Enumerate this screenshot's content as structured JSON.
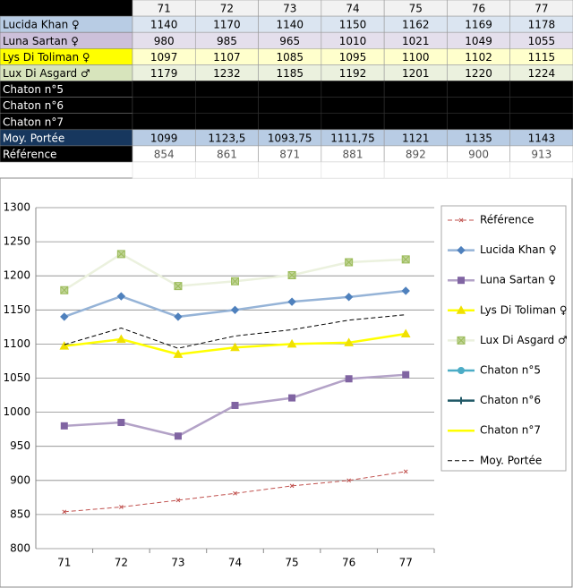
{
  "table": {
    "header": [
      "71",
      "72",
      "73",
      "74",
      "75",
      "76",
      "77"
    ],
    "rows": [
      {
        "name": "Lucida Khan ♀",
        "cells": [
          "1140",
          "1170",
          "1140",
          "1150",
          "1162",
          "1169",
          "1178"
        ]
      },
      {
        "name": "Luna Sartan ♀",
        "cells": [
          "980",
          "985",
          "965",
          "1010",
          "1021",
          "1049",
          "1055"
        ]
      },
      {
        "name": "Lys Di Toliman ♀",
        "cells": [
          "1097",
          "1107",
          "1085",
          "1095",
          "1100",
          "1102",
          "1115"
        ]
      },
      {
        "name": "Lux Di Asgard ♂",
        "cells": [
          "1179",
          "1232",
          "1185",
          "1192",
          "1201",
          "1220",
          "1224"
        ]
      },
      {
        "name": "Chaton n°5",
        "cells": []
      },
      {
        "name": "Chaton n°6",
        "cells": []
      },
      {
        "name": "Chaton n°7",
        "cells": []
      },
      {
        "name": "Moy. Portée",
        "cells": [
          "1099",
          "1123,5",
          "1093,75",
          "1111,75",
          "1121",
          "1135",
          "1143"
        ]
      },
      {
        "name": "Référence",
        "cells": [
          "854",
          "861",
          "871",
          "881",
          "892",
          "900",
          "913"
        ]
      }
    ]
  },
  "chart_data": {
    "type": "line",
    "categories": [
      "71",
      "72",
      "73",
      "74",
      "75",
      "76",
      "77"
    ],
    "ylim": [
      800,
      1300
    ],
    "yticks": [
      800,
      850,
      900,
      950,
      1000,
      1050,
      1100,
      1150,
      1200,
      1250,
      1300
    ],
    "grid": true,
    "series": [
      {
        "name": "Référence",
        "color": "#c0504d",
        "marker": "star",
        "dash": true,
        "values": [
          854,
          861,
          871,
          881,
          892,
          900,
          913
        ]
      },
      {
        "name": "Lucida Khan ♀",
        "color": "#95b3d7",
        "marker_color": "#4f81bd",
        "marker": "diamond",
        "values": [
          1140,
          1170,
          1140,
          1150,
          1162,
          1169,
          1178
        ]
      },
      {
        "name": "Luna Sartan ♀",
        "color": "#b3a2c7",
        "marker_color": "#8064a2",
        "marker": "square",
        "values": [
          980,
          985,
          965,
          1010,
          1021,
          1049,
          1055
        ]
      },
      {
        "name": "Lys Di Toliman ♀",
        "color": "#ffff00",
        "marker_color": "#f0e000",
        "marker": "triangle",
        "values": [
          1097,
          1107,
          1085,
          1095,
          1100,
          1102,
          1115
        ]
      },
      {
        "name": "Lux Di Asgard ♂",
        "color": "#ebf1de",
        "marker_color": "#9bbb59",
        "marker": "xsquare",
        "values": [
          1179,
          1232,
          1185,
          1192,
          1201,
          1220,
          1224
        ]
      },
      {
        "name": "Chaton n°5",
        "color": "#4bacc6",
        "marker": "circle",
        "values": [
          null,
          null,
          null,
          null,
          null,
          null,
          null
        ]
      },
      {
        "name": "Chaton n°6",
        "color": "#215967",
        "marker": "plus",
        "values": [
          null,
          null,
          null,
          null,
          null,
          null,
          null
        ]
      },
      {
        "name": "Chaton n°7",
        "color": "#ffff00",
        "marker": "none",
        "values": [
          null,
          null,
          null,
          null,
          null,
          null,
          null
        ]
      },
      {
        "name": "Moy. Portée",
        "color": "#000000",
        "marker": "none",
        "dash": true,
        "values": [
          1099,
          1123.5,
          1093.75,
          1111.75,
          1121,
          1135,
          1143
        ]
      }
    ]
  }
}
